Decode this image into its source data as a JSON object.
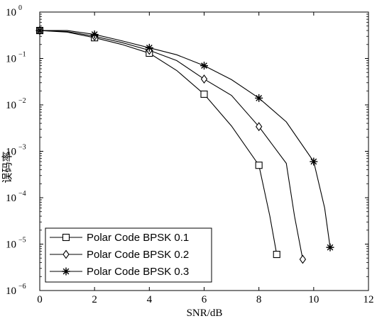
{
  "chart_data": {
    "type": "line",
    "xlabel": "SNR/dB",
    "ylabel": "误码率",
    "xlim": [
      0,
      12
    ],
    "ylim": [
      1e-06,
      1
    ],
    "yscale": "log",
    "xticks": [
      "0",
      "2",
      "4",
      "6",
      "8",
      "10",
      "12"
    ],
    "yticks": [
      {
        "base": "10",
        "exp": "0"
      },
      {
        "base": "10",
        "exp": "−1"
      },
      {
        "base": "10",
        "exp": "−2"
      },
      {
        "base": "10",
        "exp": "−3"
      },
      {
        "base": "10",
        "exp": "−4"
      },
      {
        "base": "10",
        "exp": "−5"
      },
      {
        "base": "10",
        "exp": "−6"
      }
    ],
    "legend_position": "bottom-left",
    "series": [
      {
        "name": "Polar  Code BPSK 0.1",
        "marker": "square",
        "line": [
          [
            0,
            0.4
          ],
          [
            1,
            0.37
          ],
          [
            2,
            0.28
          ],
          [
            3,
            0.2
          ],
          [
            4,
            0.13
          ],
          [
            5,
            0.055
          ],
          [
            6,
            0.017
          ],
          [
            7,
            0.0035
          ],
          [
            8,
            0.0005
          ],
          [
            8.4,
            4e-05
          ],
          [
            8.65,
            6e-06
          ]
        ],
        "points": [
          [
            0,
            0.4
          ],
          [
            2,
            0.28
          ],
          [
            4,
            0.13
          ],
          [
            6,
            0.017
          ],
          [
            8,
            0.0005
          ],
          [
            8.65,
            6e-06
          ]
        ]
      },
      {
        "name": "Polar Code BPSK 0.2",
        "marker": "diamond",
        "line": [
          [
            0,
            0.4
          ],
          [
            1,
            0.38
          ],
          [
            2,
            0.3
          ],
          [
            3,
            0.22
          ],
          [
            4,
            0.15
          ],
          [
            5,
            0.09
          ],
          [
            6,
            0.036
          ],
          [
            7,
            0.016
          ],
          [
            8,
            0.0034
          ],
          [
            9,
            0.00055
          ],
          [
            9.3,
            4e-05
          ],
          [
            9.6,
            4.7e-06
          ]
        ],
        "points": [
          [
            0,
            0.4
          ],
          [
            2,
            0.3
          ],
          [
            4,
            0.15
          ],
          [
            6,
            0.036
          ],
          [
            8,
            0.0034
          ],
          [
            9.6,
            4.7e-06
          ]
        ]
      },
      {
        "name": "Polar Code BPSK 0.3",
        "marker": "star",
        "line": [
          [
            0,
            0.4
          ],
          [
            1,
            0.4
          ],
          [
            2,
            0.33
          ],
          [
            3,
            0.24
          ],
          [
            4,
            0.17
          ],
          [
            5,
            0.12
          ],
          [
            6,
            0.07
          ],
          [
            7,
            0.035
          ],
          [
            8,
            0.014
          ],
          [
            9,
            0.0043
          ],
          [
            10,
            0.0006
          ],
          [
            10.4,
            6e-05
          ],
          [
            10.6,
            8.5e-06
          ]
        ],
        "points": [
          [
            0,
            0.4
          ],
          [
            2,
            0.33
          ],
          [
            4,
            0.17
          ],
          [
            6,
            0.07
          ],
          [
            8,
            0.014
          ],
          [
            10,
            0.0006
          ],
          [
            10.6,
            8.5e-06
          ]
        ]
      }
    ]
  }
}
